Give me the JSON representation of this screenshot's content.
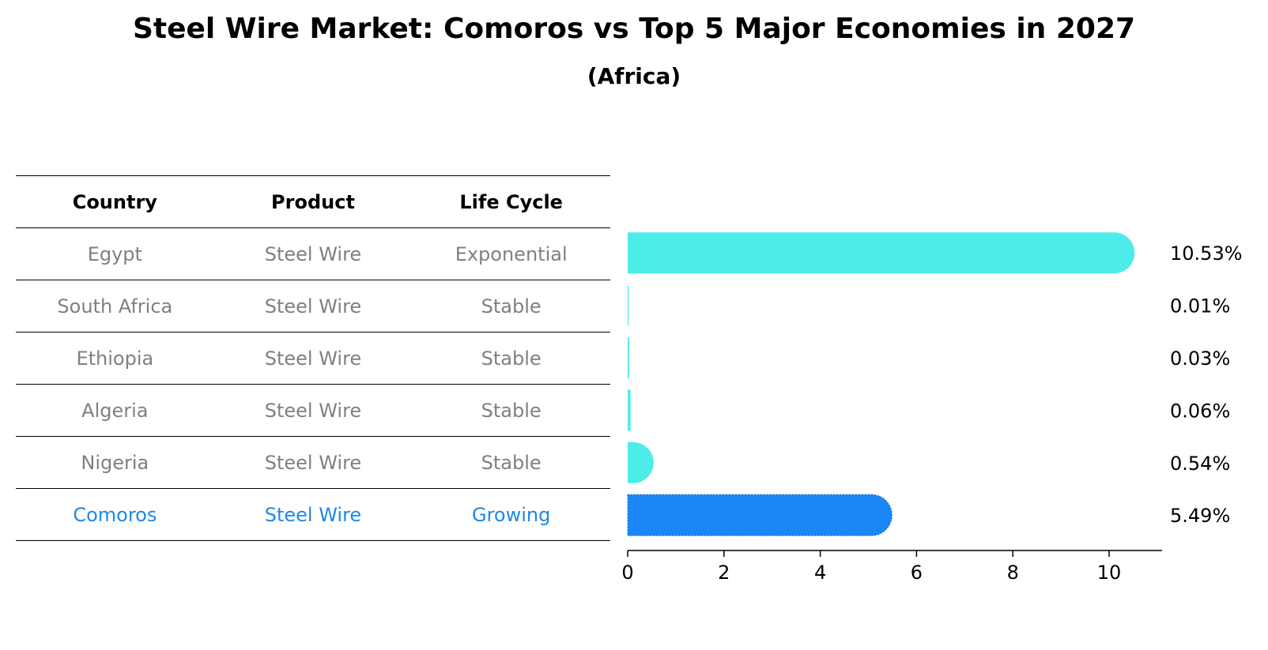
{
  "title": "Steel Wire Market: Comoros vs Top 5 Major Economies in 2027",
  "subtitle": "(Africa)",
  "table": {
    "headers": [
      "Country",
      "Product",
      "Life Cycle"
    ],
    "rows": [
      {
        "country": "Egypt",
        "product": "Steel Wire",
        "life_cycle": "Exponential"
      },
      {
        "country": "South Africa",
        "product": "Steel Wire",
        "life_cycle": "Stable"
      },
      {
        "country": "Ethiopia",
        "product": "Steel Wire",
        "life_cycle": "Stable"
      },
      {
        "country": "Algeria",
        "product": "Steel Wire",
        "life_cycle": "Stable"
      },
      {
        "country": "Nigeria",
        "product": "Steel Wire",
        "life_cycle": "Stable"
      },
      {
        "country": "Comoros",
        "product": "Steel Wire",
        "life_cycle": "Growing"
      }
    ]
  },
  "colors": {
    "bar": "#4eece8",
    "highlight_bar": "#1a87f5",
    "muted_text": "#808080",
    "highlight_text": "#1e88e5"
  },
  "chart_data": {
    "type": "bar",
    "orientation": "horizontal",
    "categories": [
      "Egypt",
      "South Africa",
      "Ethiopia",
      "Algeria",
      "Nigeria",
      "Comoros"
    ],
    "values": [
      10.53,
      0.01,
      0.03,
      0.06,
      0.54,
      5.49
    ],
    "labels": [
      "10.53%",
      "0.01%",
      "0.03%",
      "0.06%",
      "0.54%",
      "5.49%"
    ],
    "highlight": "Comoros",
    "xlim": [
      0,
      11.1
    ],
    "xticks": [
      0,
      2,
      4,
      6,
      8,
      10
    ],
    "xlabel": "",
    "ylabel": ""
  }
}
